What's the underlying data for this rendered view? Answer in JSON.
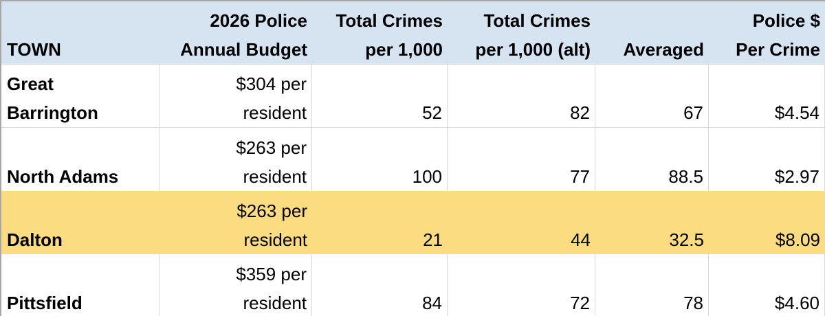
{
  "colors": {
    "header_bg": "#d6e4f2",
    "highlight_bg": "#fbdc80",
    "gridline": "#d9d9d9",
    "outer_border": "#a6a6a6",
    "text": "#000000"
  },
  "table": {
    "columns": [
      {
        "key": "town",
        "label": "TOWN",
        "align": "left"
      },
      {
        "key": "budget",
        "label": [
          "2026 Police",
          "Annual Budget"
        ],
        "align": "right"
      },
      {
        "key": "crimes_per_1000",
        "label": [
          "Total Crimes",
          "per 1,000"
        ],
        "align": "right"
      },
      {
        "key": "crimes_per_1000_alt",
        "label": [
          "Total Crimes",
          "per 1,000 (alt)"
        ],
        "align": "right"
      },
      {
        "key": "averaged",
        "label": "Averaged",
        "align": "right"
      },
      {
        "key": "police_per_crime",
        "label": [
          "Police $",
          "Per Crime"
        ],
        "align": "right"
      }
    ],
    "rows": [
      {
        "town": [
          "Great",
          "Barrington"
        ],
        "budget": [
          "$304 per",
          "resident"
        ],
        "crimes_per_1000": "52",
        "crimes_per_1000_alt": "82",
        "averaged": "67",
        "police_per_crime": "$4.54",
        "highlighted": false
      },
      {
        "town": "North Adams",
        "budget": [
          "$263 per",
          "resident"
        ],
        "crimes_per_1000": "100",
        "crimes_per_1000_alt": "77",
        "averaged": "88.5",
        "police_per_crime": "$2.97",
        "highlighted": false
      },
      {
        "town": "Dalton",
        "budget": [
          "$263 per",
          "resident"
        ],
        "crimes_per_1000": "21",
        "crimes_per_1000_alt": "44",
        "averaged": "32.5",
        "police_per_crime": "$8.09",
        "highlighted": true
      },
      {
        "town": "Pittsfield",
        "budget": [
          "$359 per",
          "resident"
        ],
        "crimes_per_1000": "84",
        "crimes_per_1000_alt": "72",
        "averaged": "78",
        "police_per_crime": "$4.60",
        "highlighted": false
      }
    ]
  }
}
